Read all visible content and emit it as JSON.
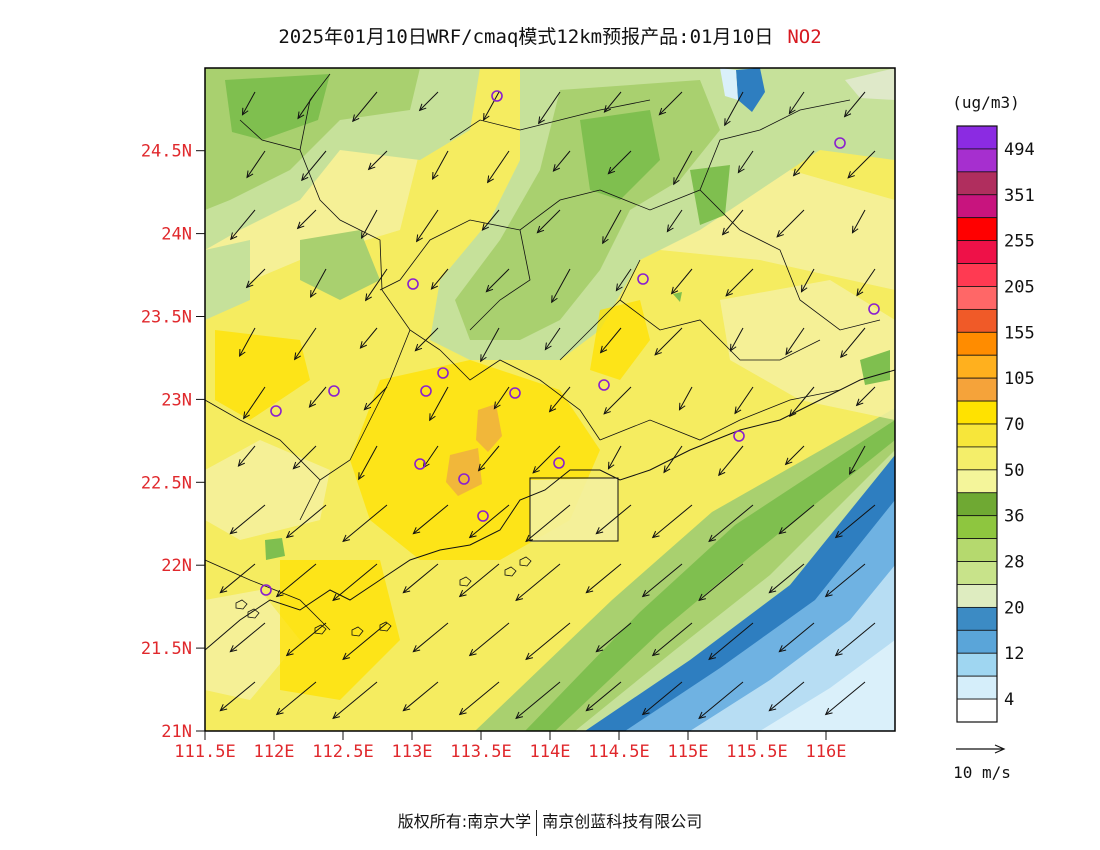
{
  "header": {
    "title": "2025年01月10日WRF/cmaq模式12km预报产品:01月10日",
    "species": "NO2"
  },
  "map": {
    "lat_ticks": [
      "24.5N",
      "24N",
      "23.5N",
      "23N",
      "22.5N",
      "22N",
      "21.5N",
      "21N"
    ],
    "lon_ticks": [
      "111.5E",
      "112E",
      "112.5E",
      "113E",
      "113.5E",
      "114E",
      "114.5E",
      "115E",
      "115.5E",
      "116E"
    ],
    "tick_color": "#e0282c",
    "colors": {
      "water_deep": "#2e7ec0",
      "water_mid": "#6fb2e2",
      "water_light": "#b7ddf3",
      "water_pale": "#daf0fa",
      "veg_dark": "#7fbf4f",
      "veg_mid": "#a9d06f",
      "veg_light": "#c6e19a",
      "yellow_pale": "#f4f1a0",
      "yellow": "#f5ec60",
      "yellow_strong": "#ffe200",
      "orange": "#f0b13e",
      "station": "#8a1fcf"
    }
  },
  "legend": {
    "unit": "(ug/m3)",
    "labels": [
      "494",
      "351",
      "255",
      "205",
      "155",
      "105",
      "70",
      "50",
      "36",
      "28",
      "20",
      "12",
      "4"
    ],
    "colors": [
      "#8b2be2",
      "#a62fcf",
      "#b02e5e",
      "#c8147e",
      "#ff0000",
      "#ee1148",
      "#ff3a52",
      "#ff6767",
      "#f05a28",
      "#ff8c00",
      "#ffb01e",
      "#f5a33a",
      "#ffe200",
      "#f7e63a",
      "#f4ee6a",
      "#f4f59a",
      "#6fa933",
      "#8ec63f",
      "#b5d96e",
      "#c8e38a",
      "#deecc0",
      "#3c8bc4",
      "#5aa5d9",
      "#9fd6f1",
      "#d5eefa",
      "#ffffff"
    ]
  },
  "wind_key": {
    "label": "10 m/s"
  },
  "footer": {
    "copyright": "版权所有:南京大学",
    "company": "南京创蓝科技有限公司"
  }
}
